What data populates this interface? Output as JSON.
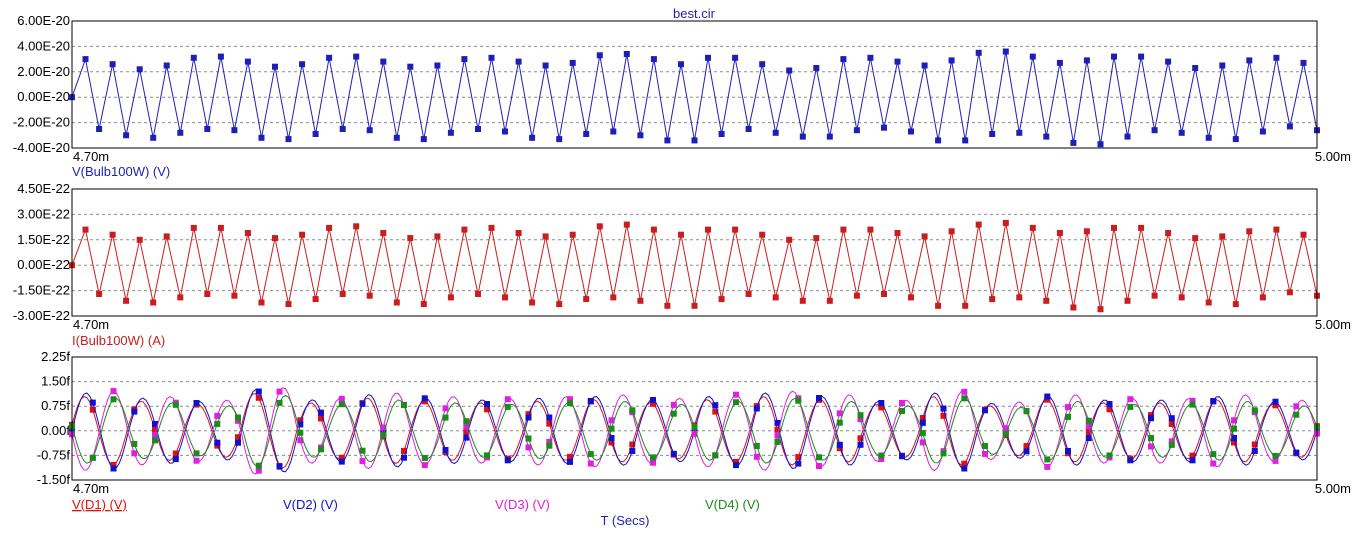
{
  "title": "best.cir",
  "x_axis_title": "T (Secs)",
  "colors": {
    "title": "#1f1fb8",
    "frame": "#000000",
    "grid": "#8c8c8c"
  },
  "chart_data": [
    {
      "type": "line",
      "id": "p1",
      "xlim": [
        4.7,
        5.0
      ],
      "x_tick_labels": [
        "4.70m",
        "5.00m"
      ],
      "ylim": [
        -4e-20,
        6e-20
      ],
      "y_ticks": [
        6e-20,
        4e-20,
        2e-20,
        0,
        -2e-20,
        -4e-20
      ],
      "y_tick_labels": [
        "6.00E-20",
        "4.00E-20",
        "2.00E-20",
        "0.00E-20",
        "-2.00E-20",
        "-4.00E-20"
      ],
      "grid": "dashed",
      "series": [
        {
          "name": "V(Bulb100W) (V)",
          "color": "#1f1fb8",
          "label_underline": false,
          "style": "zigzag",
          "n": 93,
          "pos_peaks": [
            3.0,
            2.6,
            2.2,
            2.5,
            3.1,
            3.2,
            2.8,
            2.4,
            2.6,
            3.1,
            3.2,
            2.8,
            2.4,
            2.5,
            3.0,
            3.1,
            2.8,
            2.5,
            2.7,
            3.3,
            3.4,
            3.0,
            2.6,
            3.1,
            3.1,
            2.6,
            2.1,
            2.3,
            3.0,
            3.1,
            2.8,
            2.5,
            2.9,
            3.5,
            3.6,
            3.2,
            2.7,
            2.9,
            3.2,
            3.2,
            2.8,
            2.3,
            2.5,
            2.9,
            3.1,
            2.7,
            2.5,
            2.9,
            3.6
          ],
          "neg_peaks": [
            -2.5,
            -3.0,
            -3.2,
            -2.8,
            -2.5,
            -2.6,
            -3.2,
            -3.3,
            -2.9,
            -2.5,
            -2.6,
            -3.2,
            -3.3,
            -2.8,
            -2.5,
            -2.7,
            -3.2,
            -3.3,
            -2.9,
            -2.7,
            -3.0,
            -3.4,
            -3.4,
            -2.9,
            -2.5,
            -2.8,
            -3.1,
            -3.1,
            -2.6,
            -2.4,
            -2.7,
            -3.4,
            -3.4,
            -2.9,
            -2.8,
            -3.1,
            -3.6,
            -3.7,
            -3.1,
            -2.6,
            -2.8,
            -3.2,
            -3.3,
            -2.7,
            -2.3,
            -2.6,
            -3.2,
            -3.3
          ]
        }
      ]
    },
    {
      "type": "line",
      "id": "p2",
      "xlim": [
        4.7,
        5.0
      ],
      "x_tick_labels": [
        "4.70m",
        "5.00m"
      ],
      "ylim": [
        -3e-22,
        4.5e-22
      ],
      "y_ticks": [
        4.5e-22,
        3e-22,
        1.5e-22,
        0,
        -1.5e-22,
        -3e-22
      ],
      "y_tick_labels": [
        "4.50E-22",
        "3.00E-22",
        "1.50E-22",
        "0.00E-22",
        "-1.50E-22",
        "-3.00E-22"
      ],
      "grid": "dashed",
      "series": [
        {
          "name": "I(Bulb100W) (A)",
          "color": "#c81e1e",
          "label_underline": false,
          "style": "zigzag",
          "n": 93,
          "pos_peaks": [
            2.1,
            1.8,
            1.5,
            1.7,
            2.2,
            2.2,
            1.9,
            1.6,
            1.8,
            2.2,
            2.3,
            1.9,
            1.6,
            1.7,
            2.1,
            2.2,
            1.9,
            1.7,
            1.8,
            2.3,
            2.4,
            2.1,
            1.8,
            2.1,
            2.1,
            1.8,
            1.5,
            1.6,
            2.1,
            2.1,
            1.9,
            1.7,
            2.0,
            2.4,
            2.5,
            2.2,
            1.9,
            2.0,
            2.2,
            2.2,
            1.9,
            1.6,
            1.7,
            2.0,
            2.1,
            1.8,
            1.7,
            2.0,
            2.4
          ],
          "neg_peaks": [
            -1.7,
            -2.1,
            -2.2,
            -1.9,
            -1.7,
            -1.8,
            -2.2,
            -2.3,
            -2.0,
            -1.7,
            -1.8,
            -2.2,
            -2.3,
            -1.9,
            -1.7,
            -1.9,
            -2.2,
            -2.3,
            -2.0,
            -1.9,
            -2.1,
            -2.4,
            -2.4,
            -2.0,
            -1.7,
            -1.9,
            -2.1,
            -2.1,
            -1.8,
            -1.7,
            -1.9,
            -2.4,
            -2.4,
            -2.0,
            -1.9,
            -2.1,
            -2.5,
            -2.6,
            -2.1,
            -1.8,
            -1.9,
            -2.2,
            -2.3,
            -1.9,
            -1.6,
            -1.8,
            -2.2,
            -2.3
          ]
        }
      ]
    },
    {
      "type": "line",
      "id": "p3",
      "xlim": [
        4.7,
        5.0
      ],
      "x_tick_labels": [
        "4.70m",
        "5.00m"
      ],
      "ylim": [
        -1.5,
        2.25
      ],
      "y_ticks": [
        2.25,
        1.5,
        0.75,
        0,
        -0.75,
        -1.5
      ],
      "y_tick_labels": [
        "2.25f",
        "1.50f",
        "0.75f",
        "0.00f",
        "-0.75f",
        "-1.50f"
      ],
      "grid": "dashed",
      "envelope_per_cycle": [
        1.1,
        0.95,
        0.85,
        1.2,
        0.9,
        1.05,
        0.95,
        0.9,
        0.95,
        1.0,
        0.9,
        1.0,
        1.1,
        1.0,
        0.85,
        1.1,
        0.8,
        1.0,
        0.9,
        0.9,
        1.0,
        0.85
      ],
      "series": [
        {
          "name": "V(D1) (V)",
          "color": "#e01010",
          "label_underline": true,
          "sign": 1,
          "gain": 0.95,
          "phase_deg": 10
        },
        {
          "name": "V(D2) (V)",
          "color": "#1010d0",
          "label_underline": false,
          "sign": 1,
          "gain": 1.05,
          "phase_deg": 0
        },
        {
          "name": "V(D3) (V)",
          "color": "#e020e0",
          "label_underline": false,
          "sign": -1,
          "gain": 1.1,
          "phase_deg": 5
        },
        {
          "name": "V(D4) (V)",
          "color": "#1a8c1a",
          "label_underline": false,
          "sign": -1,
          "gain": 0.9,
          "phase_deg": -8
        }
      ]
    }
  ]
}
